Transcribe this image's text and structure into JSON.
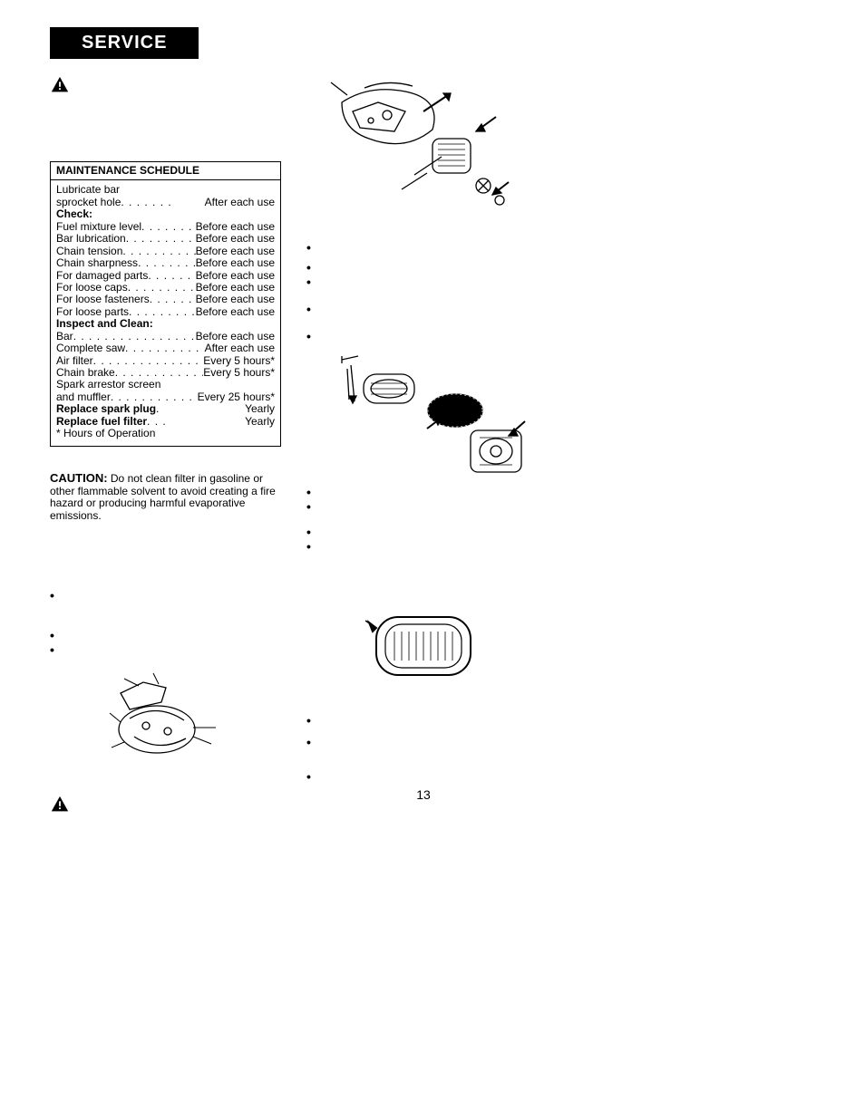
{
  "header": "SERVICE",
  "maintenance": {
    "title": "MAINTENANCE SCHEDULE",
    "group1": [
      {
        "left": "Lubricate bar\nsprocket hole",
        "right": "After each use"
      }
    ],
    "checkLabel": "Check:",
    "checkItems": [
      {
        "left": "Fuel mixture level",
        "right": "Before each use"
      },
      {
        "left": "Bar lubrication",
        "right": "Before each use"
      },
      {
        "left": "Chain tension",
        "right": "Before each use"
      },
      {
        "left": "Chain sharpness",
        "right": "Before each use"
      },
      {
        "left": "For damaged parts",
        "right": "Before each use"
      },
      {
        "left": "For loose caps",
        "right": "Before each use"
      },
      {
        "left": "For loose fasteners",
        "right": "Before each use"
      },
      {
        "left": "For loose parts",
        "right": "Before each use"
      }
    ],
    "inspectLabel": "Inspect and Clean:",
    "inspectItems": [
      {
        "left": "Bar",
        "right": "Before each use"
      },
      {
        "left": "Complete saw",
        "right": "After each use"
      },
      {
        "left": "Air filter",
        "right": "Every 5 hours*"
      },
      {
        "left": "Chain brake",
        "right": "Every 5 hours*"
      },
      {
        "left": "Spark arrestor screen\nand muffler",
        "right": "Every 25 hours*"
      }
    ],
    "replace1": {
      "left": "Replace spark plug",
      "right": "Yearly"
    },
    "replace2": {
      "left": "Replace fuel filter",
      "right": "Yearly"
    },
    "footnote": "* Hours of Operation"
  },
  "caution": {
    "label": "CAUTION:",
    "text": "Do not clean filter in gasoline or other flammable solvent to avoid creating a fire hazard or producing harmful evaporative emissions."
  },
  "pageNumber": "13",
  "diagrams": {
    "strokeColor": "#000000",
    "fillColor": "#ffffff"
  }
}
